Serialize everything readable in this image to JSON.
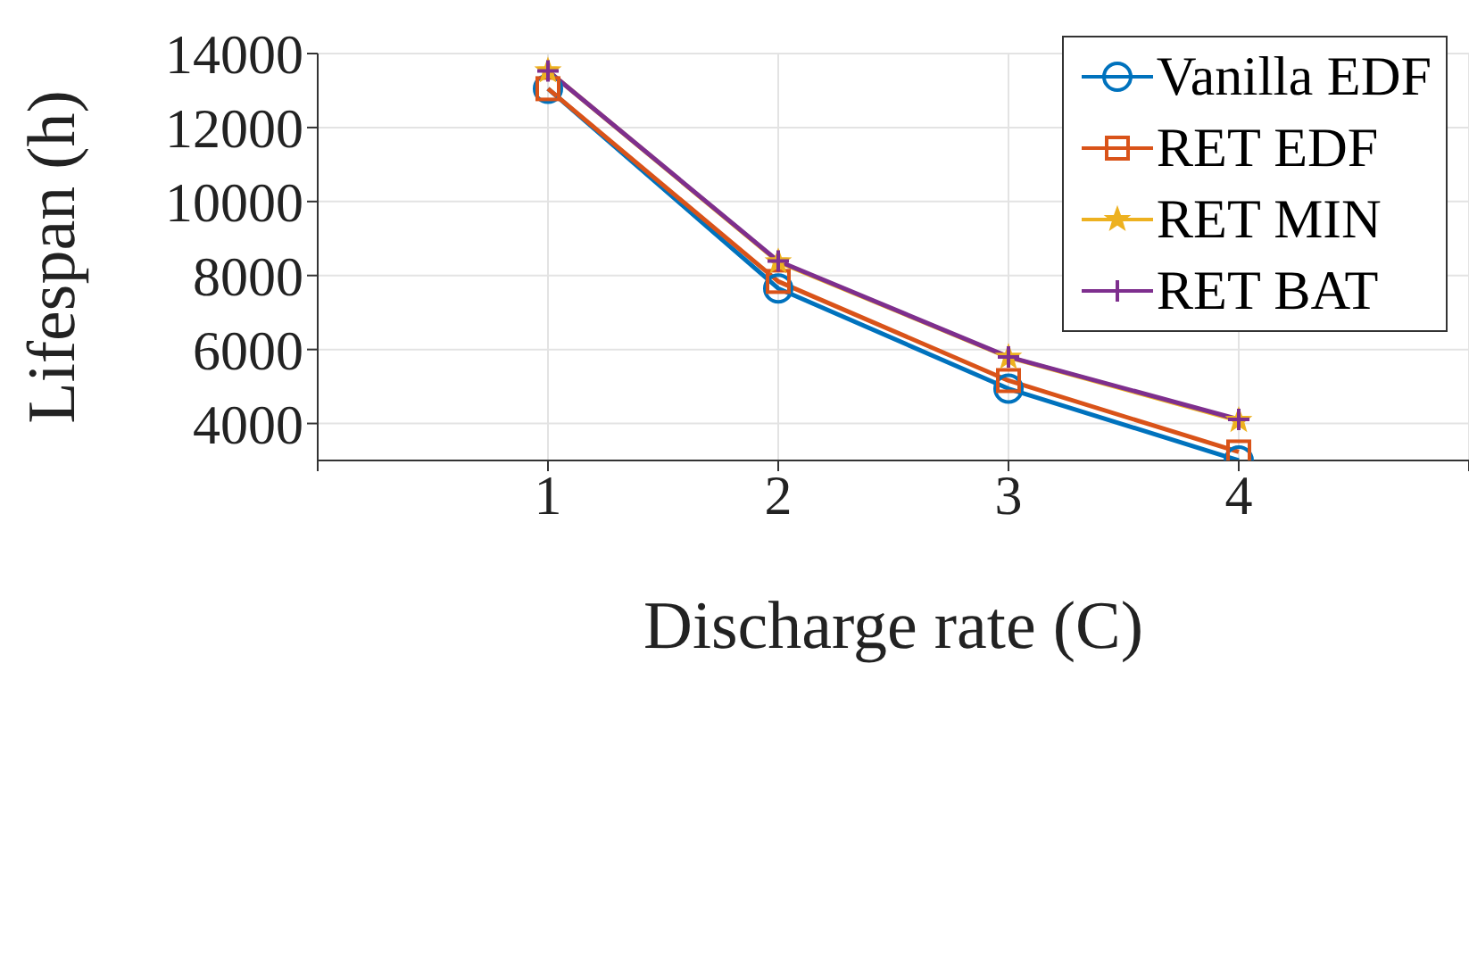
{
  "chart_data": {
    "type": "line",
    "xlabel": "Discharge rate (C)",
    "ylabel": "Lifespan (h)",
    "x": [
      1,
      2,
      3,
      4
    ],
    "series": [
      {
        "name": "Vanilla EDF",
        "color": "#0072bd",
        "marker": "circle",
        "values": [
          13050,
          7650,
          4940,
          3000
        ]
      },
      {
        "name": "RET EDF",
        "color": "#d95319",
        "marker": "square",
        "values": [
          13050,
          7840,
          5160,
          3230
        ]
      },
      {
        "name": "RET MIN",
        "color": "#edb120",
        "marker": "star",
        "values": [
          13530,
          8370,
          5790,
          4080
        ]
      },
      {
        "name": "RET BAT",
        "color": "#7e2f8e",
        "marker": "cross",
        "values": [
          13530,
          8390,
          5800,
          4110
        ]
      }
    ],
    "xlim": [
      0,
      5
    ],
    "xticks": [
      {
        "value": 0,
        "label": null
      },
      1,
      2,
      3,
      4,
      {
        "value": 5,
        "label": null
      }
    ],
    "ylim": [
      3000,
      14000
    ],
    "yticks": [
      4000,
      6000,
      8000,
      10000,
      12000,
      14000
    ],
    "grid": true,
    "legend": "top right",
    "line_style": "solid"
  }
}
